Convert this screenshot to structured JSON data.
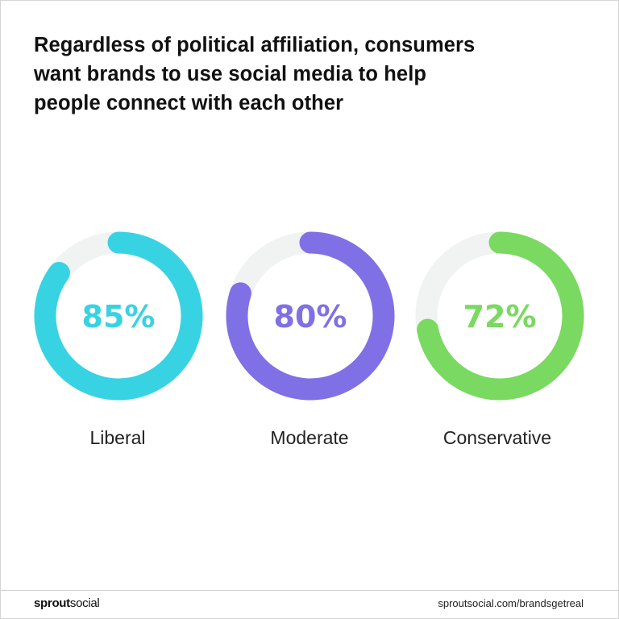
{
  "title_lines": [
    "Regardless of political affiliation, consumers",
    "want brands to use social media to help",
    "people connect with each other"
  ],
  "chart_data": {
    "type": "pie",
    "title": "Regardless of political affiliation, consumers want brands to use social media to help people connect with each other",
    "categories": [
      "Liberal",
      "Moderate",
      "Conservative"
    ],
    "values": [
      85,
      80,
      72
    ],
    "value_labels": [
      "85%",
      "80%",
      "72%"
    ],
    "unit": "%",
    "max": 100,
    "colors": [
      "#38d3e3",
      "#8070e6",
      "#7ad960"
    ],
    "track_color": "#f1f2f2"
  },
  "footer": {
    "logo_bold": "sprout",
    "logo_regular": "social",
    "url": "sproutsocial.com/brandsgetreal"
  }
}
